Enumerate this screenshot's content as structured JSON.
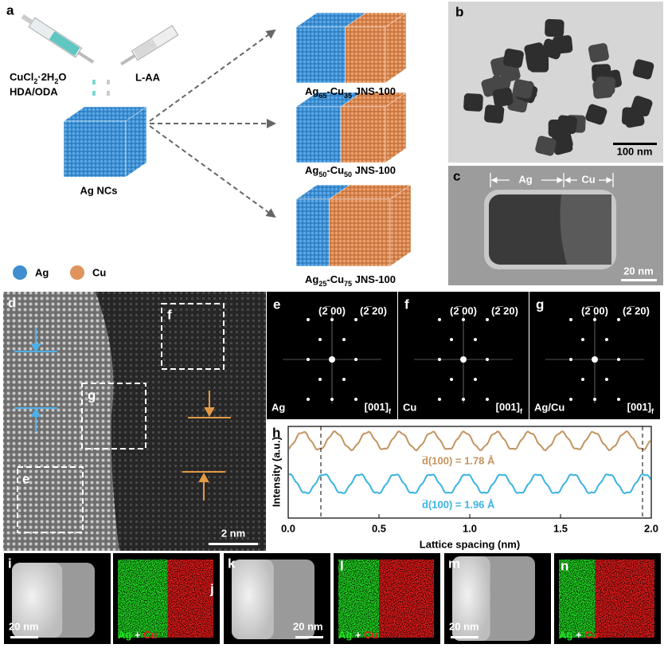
{
  "panel_labels": [
    "a",
    "b",
    "c",
    "d",
    "e",
    "f",
    "g",
    "h",
    "i",
    "j",
    "k",
    "l",
    "m",
    "n"
  ],
  "panel_a": {
    "reagent_left": [
      "CuCl",
      "2",
      "·2H",
      "2",
      "O"
    ],
    "reagent_left_line2": "HDA/ODA",
    "reagent_right": "L-AA",
    "seed": "Ag NCs",
    "products": [
      [
        "Ag",
        "65",
        "-Cu",
        "35",
        " JNS-100"
      ],
      [
        "Ag",
        "50",
        "-Cu",
        "50",
        " JNS-100"
      ],
      [
        "Ag",
        "25",
        "-Cu",
        "75",
        " JNS-100"
      ]
    ],
    "legend": [
      "Ag",
      "Cu"
    ]
  },
  "panel_b": {
    "scale_bar": "100 nm"
  },
  "panel_c": {
    "labels": [
      "Ag",
      "Cu"
    ],
    "scale_bar": "20 nm"
  },
  "panel_d": {
    "boxes": [
      "f",
      "g",
      "e"
    ],
    "scale_bar": "2 nm"
  },
  "fft_panels": [
    {
      "sample": "Ag",
      "spots": [
        "(2̅ 00)",
        "(2̅ 20)"
      ],
      "zone": [
        "[001]",
        "f"
      ]
    },
    {
      "sample": "Cu",
      "spots": [
        "(2̅ 00)",
        "(2̅ 20)"
      ],
      "zone": [
        "[001]",
        "f"
      ]
    },
    {
      "sample": "Ag/Cu",
      "spots": [
        "(2̅ 00)",
        "(2̅ 20)"
      ],
      "zone": [
        "[001]",
        "f"
      ]
    }
  ],
  "panel_h": {
    "chart_data": {
      "type": "line",
      "xlabel": "Lattice spacing (nm)",
      "ylabel": "Intensity (a.u.)",
      "xlim": [
        0,
        2
      ],
      "xticks": [
        {
          "value": 0,
          "label": "0.0"
        },
        {
          "value": 0.5,
          "label": "0.5"
        },
        {
          "value": 1,
          "label": "1.0"
        },
        {
          "value": 1.5,
          "label": "1.5"
        },
        {
          "value": 2,
          "label": "2.0"
        }
      ],
      "annotations": [
        "d̅(100) = 1.78 Å",
        "d̅(100) = 1.96 Å"
      ]
    }
  },
  "eds_panels": [
    {
      "scale_bar": "20 nm"
    },
    {
      "map": [
        "Ag",
        " + ",
        "Cu"
      ]
    },
    {
      "scale_bar": "20 nm"
    },
    {
      "map": [
        "Ag",
        " + ",
        "Cu"
      ]
    },
    {
      "scale_bar": "20 nm"
    },
    {
      "map": [
        "Ag",
        " + ",
        "Cu"
      ]
    }
  ]
}
